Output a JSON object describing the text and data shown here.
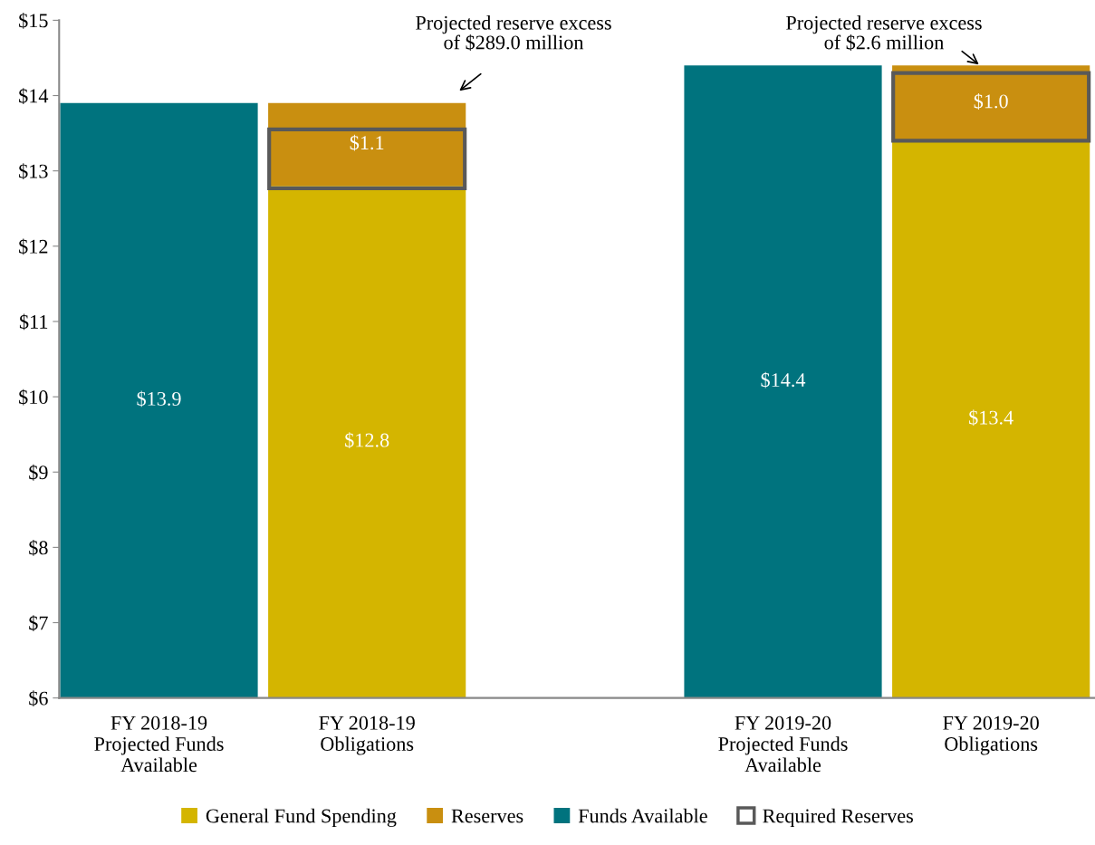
{
  "chart_data": {
    "type": "bar",
    "categories": [
      "FY 2018-19\nProjected Funds\nAvailable",
      "FY 2018-19\nObligations",
      null,
      "FY 2019-20\nProjected Funds\nAvailable",
      "FY 2019-20\nObligations"
    ],
    "series": [
      {
        "name": "General Fund Spending",
        "color": "#d4b500",
        "values": [
          null,
          12.8,
          null,
          null,
          13.4
        ],
        "value_labels": [
          null,
          "$12.8",
          null,
          null,
          "$13.4"
        ]
      },
      {
        "name": "Reserves",
        "color": "#c98f10",
        "base": [
          null,
          12.8,
          null,
          null,
          13.4
        ],
        "values": [
          null,
          1.1,
          null,
          null,
          1.0
        ],
        "value_labels": [
          null,
          "$1.1",
          null,
          null,
          "$1.0"
        ]
      },
      {
        "name": "Funds Available",
        "color": "#00737e",
        "values": [
          13.9,
          null,
          null,
          14.4,
          null
        ],
        "value_labels": [
          "$13.9",
          null,
          null,
          "$14.4",
          null
        ]
      },
      {
        "name": "Required Reserves",
        "color": "#595959",
        "base": [
          null,
          12.77,
          null,
          null,
          13.4
        ],
        "values": [
          null,
          0.78,
          null,
          null,
          0.9
        ]
      }
    ],
    "ylim": [
      6,
      15
    ],
    "yticks": [
      {
        "value": 6,
        "label": "$6"
      },
      {
        "value": 7,
        "label": "$7"
      },
      {
        "value": 8,
        "label": "$8"
      },
      {
        "value": 9,
        "label": "$9"
      },
      {
        "value": 10,
        "label": "$10"
      },
      {
        "value": 11,
        "label": "$11"
      },
      {
        "value": 12,
        "label": "$12"
      },
      {
        "value": 13,
        "label": "$13"
      },
      {
        "value": 14,
        "label": "$14"
      },
      {
        "value": 15,
        "label": "$15"
      }
    ],
    "grid": false,
    "legend": "bottom",
    "annotations": [
      "Projected reserve excess\nof $289.0 million",
      "Projected reserve excess\nof $2.6 million"
    ]
  }
}
